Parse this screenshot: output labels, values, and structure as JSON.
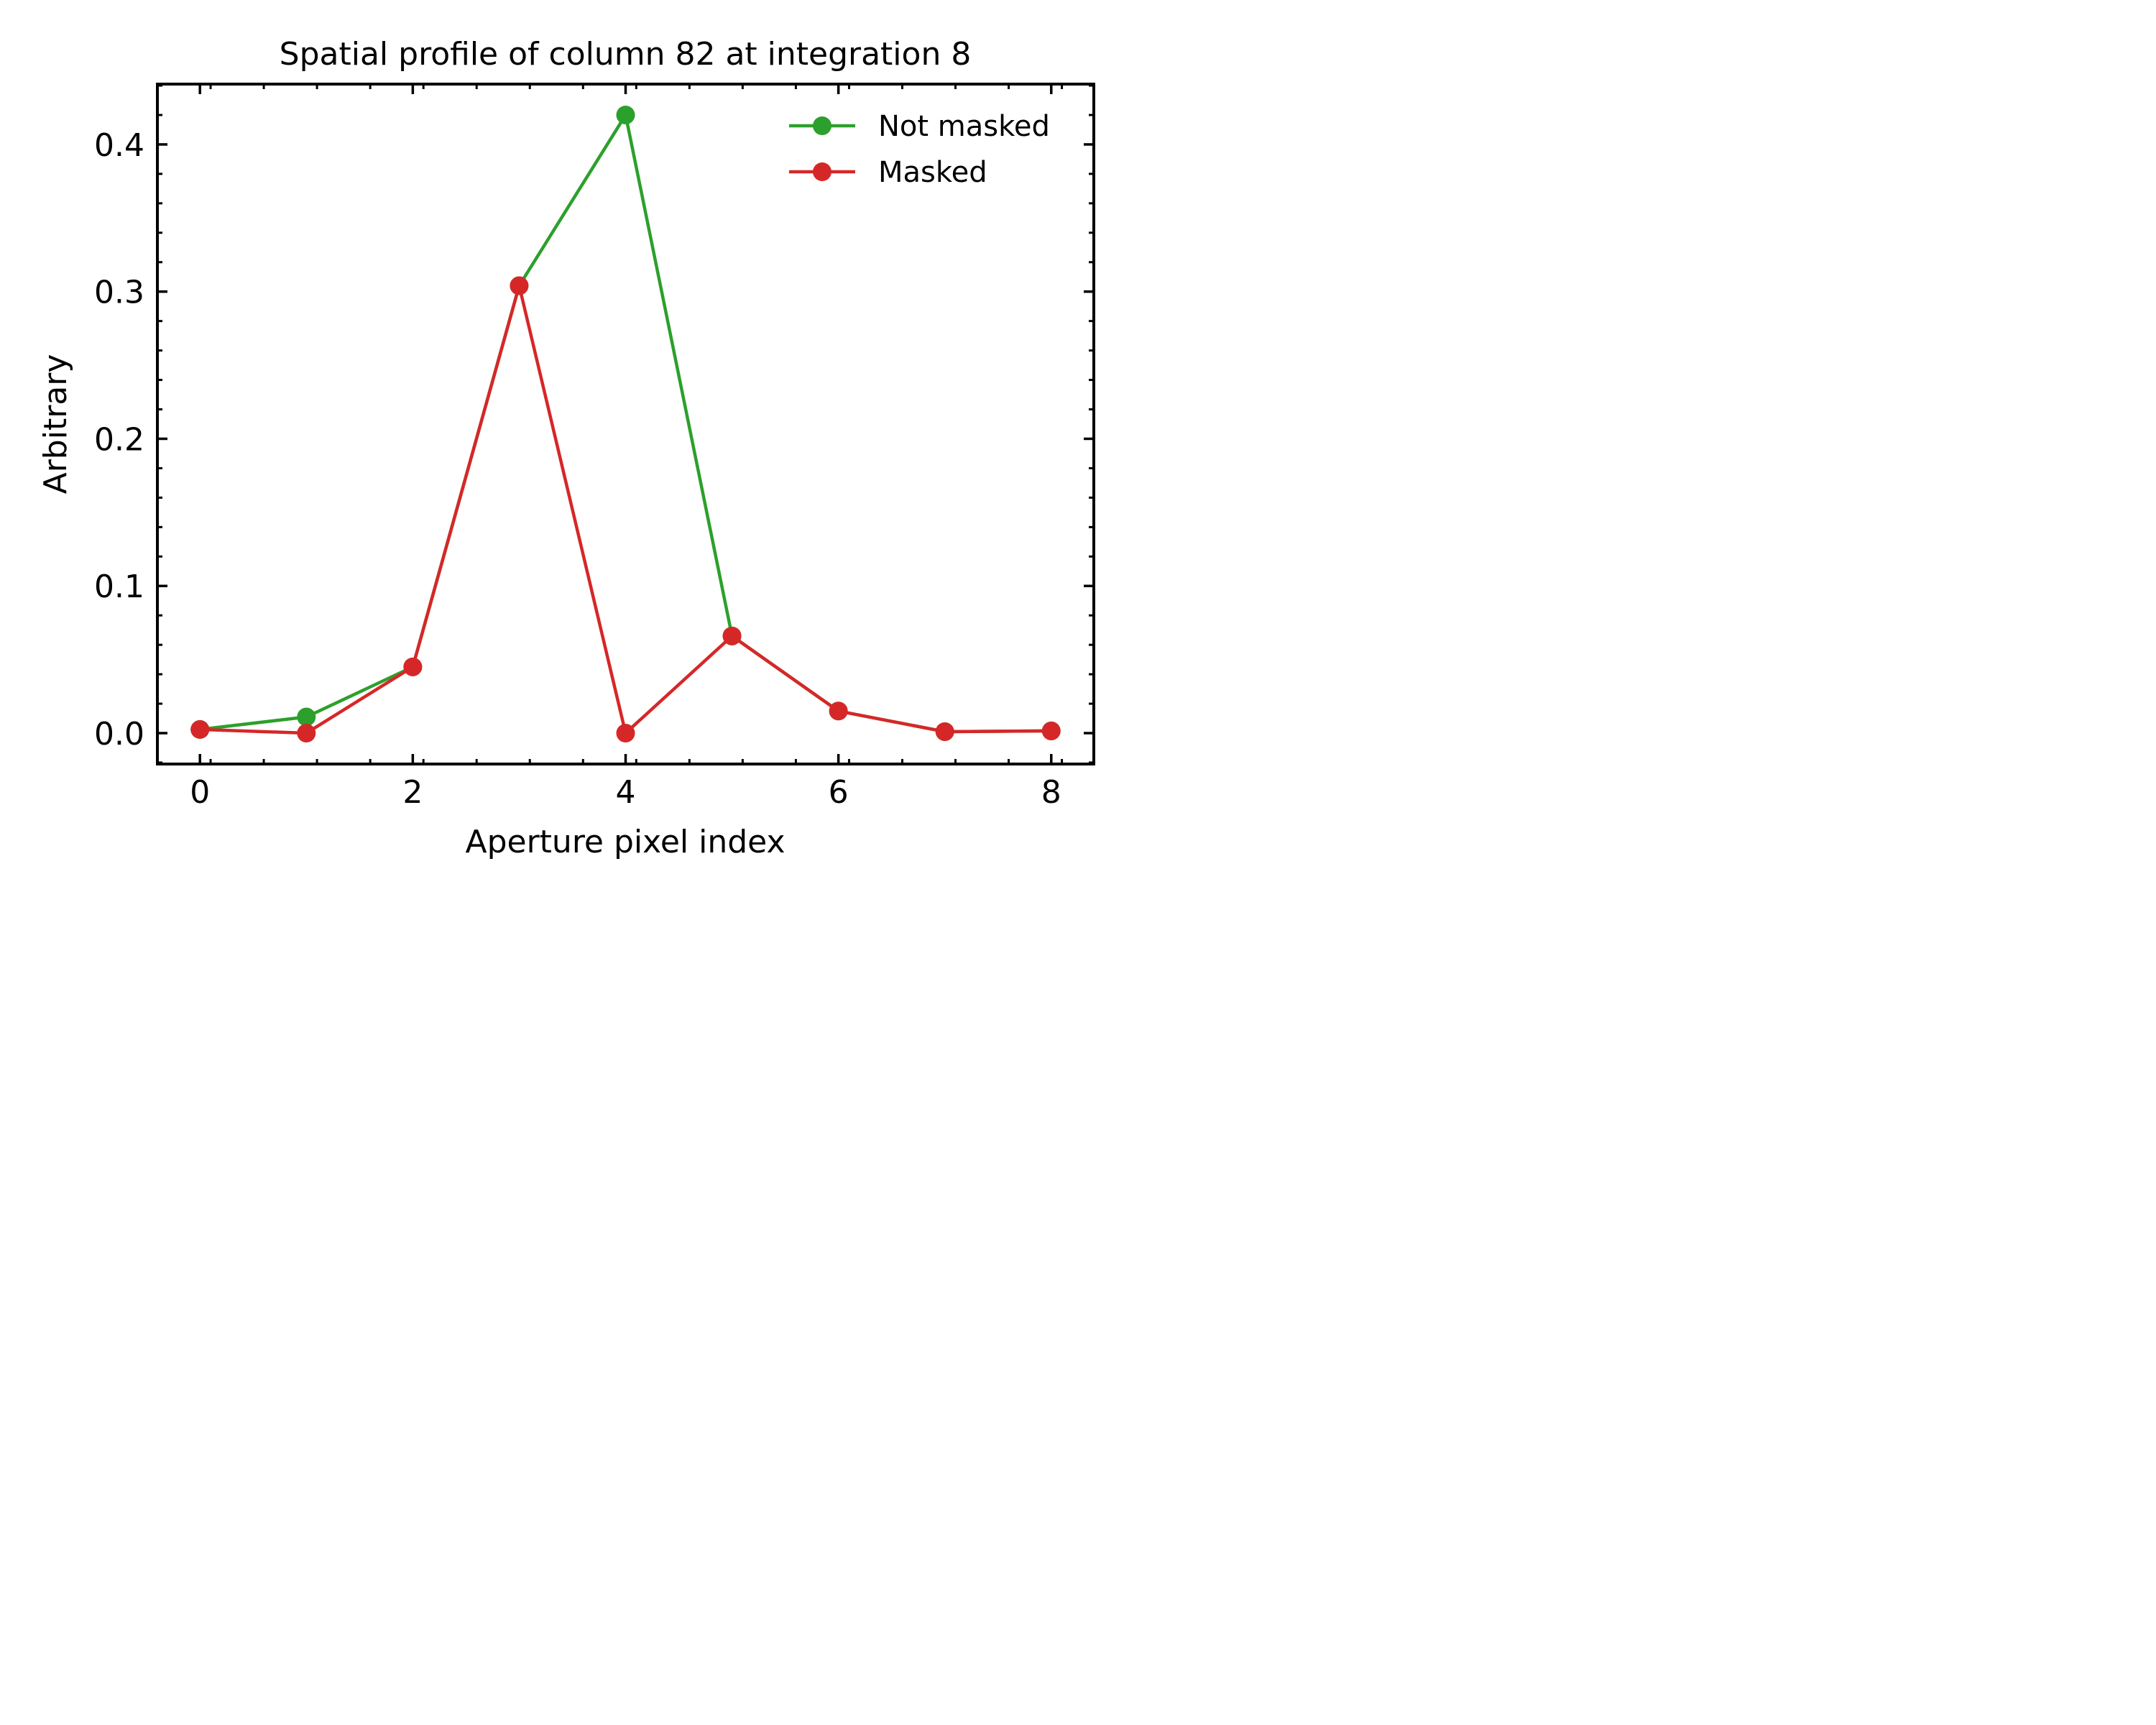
{
  "chart_data": {
    "type": "line",
    "title": "Spatial profile of column 82 at integration 8",
    "xlabel": "Aperture pixel index",
    "ylabel": "Arbitrary",
    "xlim": [
      -0.4,
      8.4
    ],
    "ylim": [
      -0.021,
      0.441
    ],
    "xticks": [
      0,
      2,
      4,
      6,
      8
    ],
    "xtick_labels": [
      "0",
      "2",
      "4",
      "6",
      "8"
    ],
    "yticks": [
      0.0,
      0.1,
      0.2,
      0.3,
      0.4
    ],
    "ytick_labels": [
      "0.0",
      "0.1",
      "0.2",
      "0.3",
      "0.4"
    ],
    "grid": false,
    "legend_position": "top-right",
    "x": [
      0,
      1,
      2,
      3,
      4,
      5,
      6,
      7,
      8
    ],
    "series": [
      {
        "name": "Not masked",
        "color": "#2ca02c",
        "values": [
          0.0025,
          0.011,
          0.045,
          0.304,
          0.42,
          0.066,
          0.015,
          0.001,
          0.0015
        ]
      },
      {
        "name": "Masked",
        "color": "#d62728",
        "values": [
          0.0025,
          0.0,
          0.045,
          0.304,
          0.0,
          0.066,
          0.015,
          0.001,
          0.0015
        ]
      }
    ]
  }
}
